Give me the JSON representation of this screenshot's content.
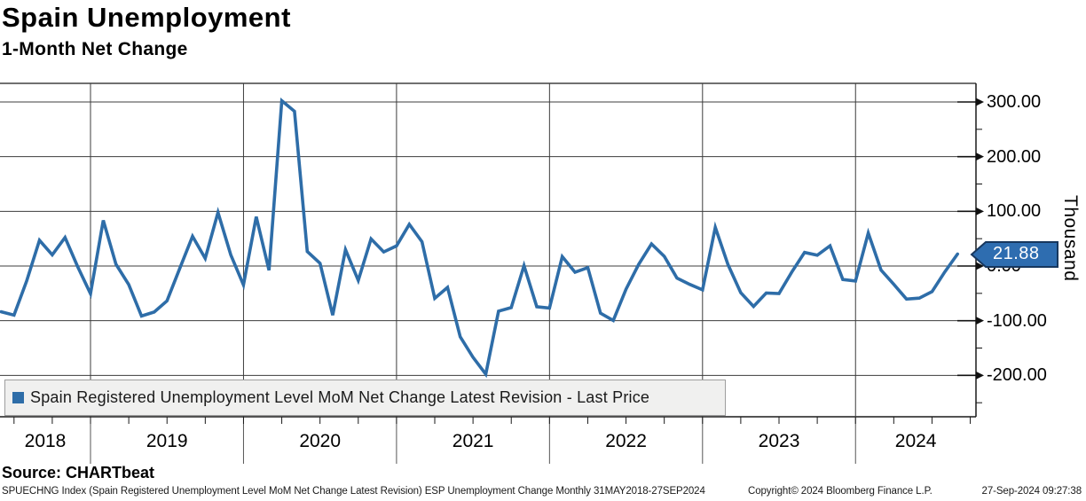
{
  "header": {
    "title": "Spain Unemployment",
    "subtitle": "1-Month Net Change"
  },
  "legend": {
    "label": "Spain Registered Unemployment Level MoM Net Change Latest Revision - Last Price",
    "swatch_color": "#2e6da8"
  },
  "footer": {
    "source": "Source: CHARTbeat",
    "description": "SPUECHNG Index (Spain Registered Unemployment Level MoM Net Change Latest Revision) ESP Unemployment Change  Monthly 31MAY2018-27SEP2024",
    "copyright": "Copyright© 2024 Bloomberg Finance L.P.",
    "timestamp": "27-Sep-2024 09:27:38"
  },
  "chart_data": {
    "type": "line",
    "title": "Spain Unemployment",
    "subtitle": "1-Month Net Change",
    "ylabel": "Thousand",
    "y_axis_title": "Thousand",
    "series_name": "Spain Registered Unemployment Level MoM Net Change Latest Revision - Last Price",
    "line_color": "#2e6da8",
    "badge_color": "#2e6db0",
    "last_price": 21.88,
    "last_price_label": "21.88",
    "frequency": "monthly",
    "x_start": "2018-05",
    "x_end": "2024-08",
    "start_year": 2018,
    "start_month": 5,
    "x_year_labels": [
      "2018",
      "2019",
      "2020",
      "2021",
      "2022",
      "2023",
      "2024"
    ],
    "y_ticks": [
      300,
      200,
      100,
      0,
      -100,
      -200
    ],
    "y_minor_ticks": [
      250,
      150,
      50,
      -50,
      -150,
      -250
    ],
    "ylim_visible": [
      -276,
      334
    ],
    "grid": true,
    "legend_position": "bottom-left",
    "values": [
      -83.7,
      -89.9,
      -27.1,
      47.0,
      20.4,
      52.2,
      -1.5,
      -50.6,
      83.5,
      3.3,
      -33.9,
      -91.5,
      -84.1,
      -63.8,
      -4.3,
      54.4,
      13.9,
      97.9,
      20.5,
      -34.6,
      90.2,
      -7.8,
      302.3,
      282.9,
      26.6,
      5.1,
      -89.8,
      29.8,
      -26.3,
      49.6,
      25.8,
      36.8,
      76.2,
      44.4,
      -59.1,
      -39.0,
      -129.4,
      -166.9,
      -197.8,
      -82.6,
      -76.1,
      0.6,
      -74.4,
      -76.8,
      17.2,
      -11.4,
      -2.9,
      -86.3,
      -99.5,
      -42.4,
      3.2,
      40.4,
      17.7,
      -22.0,
      -33.5,
      -43.7,
      70.7,
      2.6,
      -48.8,
      -73.9,
      -49.3,
      -50.3,
      -11.0,
      24.8,
      19.8,
      36.9,
      -24.6,
      -27.4,
      60.4,
      -7.5,
      -33.4,
      -60.5,
      -58.7,
      -46.8,
      -10.8,
      21.88
    ]
  }
}
